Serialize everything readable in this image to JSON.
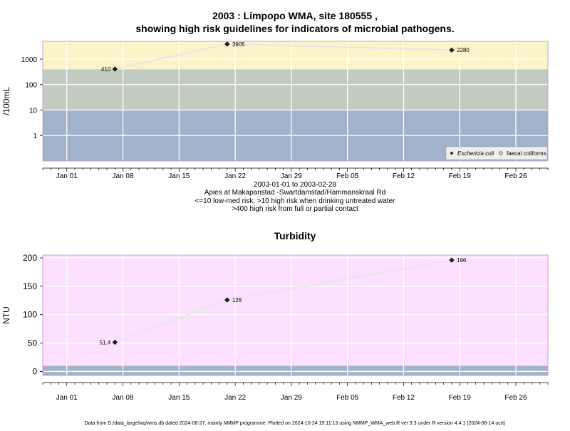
{
  "title_line1": "2003 : Limpopo WMA, site 180555 ,",
  "title_line2": "showing high risk guidelines for indicators of microbial pathogens.",
  "footer": "Data from D:/data_large/wq/wms.db dated 2024-08-27, mainly NMMP programme. Plotted on 2024-10-24 19:11:13 using NMMP_WMA_web.R ver 9.3 under R version 4.4.1 (2024-06-14 ucrt)",
  "colors": {
    "band_low": "#a3b2cb",
    "band_mid": "#c2cbc0",
    "band_high": "#fcf4c9",
    "band_top": "#f2dcf5",
    "turbidity_bg": "#fde0fd",
    "turbidity_low": "#a3b2cb",
    "line": "#e6e6e6",
    "grid": "#ffffff",
    "frame": "#c090d0"
  },
  "chart_data": [
    {
      "type": "line",
      "ylabel": "/100mL",
      "yscale": "log",
      "ylim": [
        0.1,
        5000
      ],
      "yticks": [
        1,
        10,
        100,
        1000
      ],
      "ytick_labels": [
        "1",
        "10",
        "100",
        "1000"
      ],
      "xlim": [
        "2002-12-29",
        "2003-03-02"
      ],
      "xticks": [
        "2003-01-01",
        "2003-01-08",
        "2003-01-15",
        "2003-01-22",
        "2003-01-29",
        "2003-02-05",
        "2003-02-12",
        "2003-02-19",
        "2003-02-26"
      ],
      "xtick_labels": [
        "Jan 01",
        "Jan 08",
        "Jan 15",
        "Jan 22",
        "Jan 29",
        "Feb 05",
        "Feb 12",
        "Feb 19",
        "Feb 26"
      ],
      "bands": [
        {
          "from": 0.1,
          "to": 10,
          "color": "#a3b2cb"
        },
        {
          "from": 10,
          "to": 400,
          "color": "#c2cbc0"
        },
        {
          "from": 400,
          "to": 5000,
          "color": "#fcf4c9"
        }
      ],
      "series": [
        {
          "name": "Eschericia coli",
          "x": [
            "2003-01-07",
            "2003-01-21",
            "2003-02-18"
          ],
          "y": [
            410,
            3905,
            2280
          ],
          "labels": [
            "410",
            "3905",
            "2280"
          ],
          "label_side": [
            "left",
            "right",
            "right"
          ]
        }
      ],
      "legend": {
        "position": "bottom-right",
        "entries": [
          "Eschericia coli",
          "faecal coliforms"
        ]
      },
      "caption": [
        "2003-01-01 to 2003-02-28",
        "Apies at Makapanstad -Swartdamstad/Hammanskraal Rd",
        "<=10 low-med risk; >10 high risk when drinking untreated water",
        ">400 high risk from full or partial contact"
      ]
    },
    {
      "type": "line",
      "title": "Turbidity",
      "ylabel": "NTU",
      "ylim": [
        -7,
        205
      ],
      "yticks": [
        0,
        50,
        100,
        150,
        200
      ],
      "ytick_labels": [
        "0",
        "50",
        "100",
        "150",
        "200"
      ],
      "xlim": [
        "2002-12-29",
        "2003-03-02"
      ],
      "xticks": [
        "2003-01-01",
        "2003-01-08",
        "2003-01-15",
        "2003-01-22",
        "2003-01-29",
        "2003-02-05",
        "2003-02-12",
        "2003-02-19",
        "2003-02-26"
      ],
      "xtick_labels": [
        "Jan 01",
        "Jan 08",
        "Jan 15",
        "Jan 22",
        "Jan 29",
        "Feb 05",
        "Feb 12",
        "Feb 19",
        "Feb 26"
      ],
      "bands": [
        {
          "from": -7,
          "to": 10,
          "color": "#a3b2cb"
        },
        {
          "from": 10,
          "to": 205,
          "color": "#fde0fd"
        }
      ],
      "series": [
        {
          "name": "",
          "x": [
            "2003-01-07",
            "2003-01-21",
            "2003-02-18"
          ],
          "y": [
            51.4,
            126,
            196
          ],
          "labels": [
            "51.4",
            "126",
            "196"
          ],
          "label_side": [
            "left",
            "right",
            "right"
          ]
        }
      ]
    }
  ]
}
